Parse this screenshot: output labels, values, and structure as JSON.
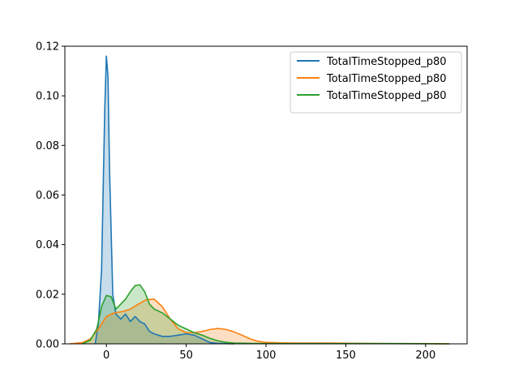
{
  "chart_data": {
    "type": "area",
    "title": "",
    "xlabel": "",
    "ylabel": "",
    "xlim": [
      -26,
      226
    ],
    "ylim": [
      0,
      0.12
    ],
    "x_ticks": [
      0,
      50,
      100,
      150,
      200
    ],
    "y_ticks": [
      0.0,
      0.02,
      0.04,
      0.06,
      0.08,
      0.1,
      0.12
    ],
    "x_tick_labels": [
      "0",
      "50",
      "100",
      "150",
      "200"
    ],
    "y_tick_labels": [
      "0.00",
      "0.02",
      "0.04",
      "0.06",
      "0.08",
      "0.10",
      "0.12"
    ],
    "grid": false,
    "legend_position": "top-right",
    "series": [
      {
        "name": "TotalTimeStopped_p80",
        "color": "#1f77b4",
        "points": [
          [
            -7,
            0
          ],
          [
            -5,
            0.008
          ],
          [
            -3,
            0.03
          ],
          [
            -1,
            0.095
          ],
          [
            0,
            0.116
          ],
          [
            1,
            0.108
          ],
          [
            2,
            0.07
          ],
          [
            4,
            0.02
          ],
          [
            6,
            0.012
          ],
          [
            9,
            0.01
          ],
          [
            12,
            0.012
          ],
          [
            15,
            0.009
          ],
          [
            18,
            0.011
          ],
          [
            21,
            0.009
          ],
          [
            24,
            0.008
          ],
          [
            27,
            0.005
          ],
          [
            30,
            0.004
          ],
          [
            35,
            0.003
          ],
          [
            40,
            0.003
          ],
          [
            45,
            0.0035
          ],
          [
            50,
            0.004
          ],
          [
            55,
            0.0035
          ],
          [
            60,
            0.002
          ],
          [
            65,
            0.0005
          ],
          [
            70,
            0.0002
          ],
          [
            80,
            0
          ]
        ]
      },
      {
        "name": "TotalTimeStopped_p80",
        "color": "#ff7f0e",
        "points": [
          [
            -23,
            0
          ],
          [
            -15,
            0.0005
          ],
          [
            -10,
            0.002
          ],
          [
            -5,
            0.006
          ],
          [
            0,
            0.011
          ],
          [
            5,
            0.0125
          ],
          [
            10,
            0.013
          ],
          [
            15,
            0.014
          ],
          [
            20,
            0.016
          ],
          [
            25,
            0.0178
          ],
          [
            30,
            0.018
          ],
          [
            35,
            0.015
          ],
          [
            40,
            0.01
          ],
          [
            45,
            0.006
          ],
          [
            50,
            0.0045
          ],
          [
            55,
            0.0045
          ],
          [
            60,
            0.005
          ],
          [
            65,
            0.0058
          ],
          [
            70,
            0.0062
          ],
          [
            75,
            0.0058
          ],
          [
            80,
            0.0048
          ],
          [
            85,
            0.0035
          ],
          [
            90,
            0.002
          ],
          [
            95,
            0.001
          ],
          [
            100,
            0.0006
          ],
          [
            110,
            0.0004
          ],
          [
            120,
            0.0003
          ],
          [
            140,
            0.0003
          ],
          [
            160,
            0.0002
          ],
          [
            180,
            0.0001
          ],
          [
            200,
            0.0001
          ],
          [
            215,
            0
          ]
        ]
      },
      {
        "name": "TotalTimeStopped_p80",
        "color": "#2ca02c",
        "points": [
          [
            -15,
            0
          ],
          [
            -10,
            0.0015
          ],
          [
            -6,
            0.006
          ],
          [
            -3,
            0.015
          ],
          [
            0,
            0.0195
          ],
          [
            3,
            0.019
          ],
          [
            6,
            0.014
          ],
          [
            9,
            0.016
          ],
          [
            12,
            0.018
          ],
          [
            15,
            0.021
          ],
          [
            18,
            0.0235
          ],
          [
            21,
            0.0238
          ],
          [
            24,
            0.021
          ],
          [
            27,
            0.016
          ],
          [
            30,
            0.014
          ],
          [
            35,
            0.0125
          ],
          [
            40,
            0.01
          ],
          [
            45,
            0.0075
          ],
          [
            50,
            0.006
          ],
          [
            55,
            0.0045
          ],
          [
            60,
            0.0035
          ],
          [
            65,
            0.0022
          ],
          [
            70,
            0.0012
          ],
          [
            75,
            0.0006
          ],
          [
            80,
            0.0003
          ],
          [
            90,
            0.0002
          ],
          [
            100,
            0.0001
          ],
          [
            120,
            0.0001
          ],
          [
            150,
            0.0001
          ],
          [
            180,
            0.0001
          ],
          [
            215,
            0
          ]
        ]
      }
    ]
  }
}
